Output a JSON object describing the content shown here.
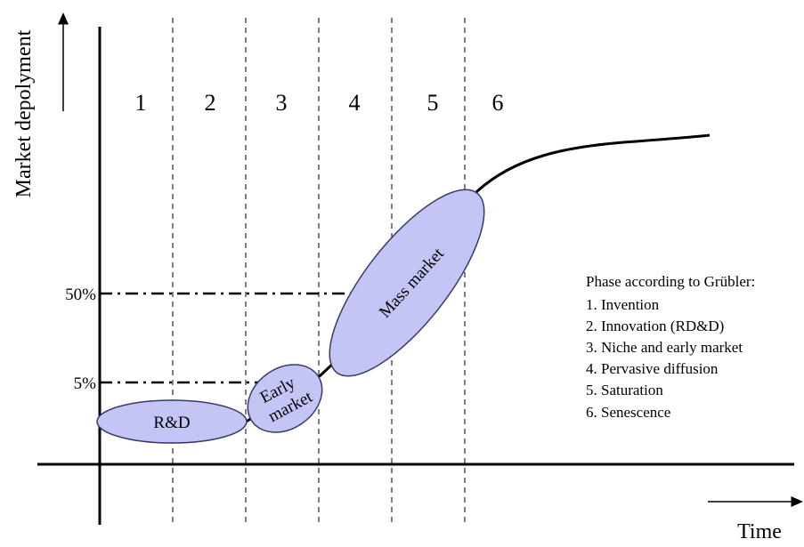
{
  "axes": {
    "y_label": "Market depolyment",
    "x_label": "Time",
    "y_ticks": [
      "50%",
      "5%"
    ]
  },
  "phases": [
    "1",
    "2",
    "3",
    "4",
    "5",
    "6"
  ],
  "stages": {
    "rd": "R&D",
    "early_line1": "Early",
    "early_line2": "market",
    "mass": "Mass market"
  },
  "legend": {
    "title": "Phase according to Grübler:",
    "items": [
      "1. Invention",
      "2. Innovation (RD&D)",
      "3. Niche and early market",
      "4. Pervasive diffusion",
      "5. Saturation",
      "6. Senescence"
    ]
  },
  "colors": {
    "ellipse_fill": "#c3c5f5",
    "ellipse_stroke": "#3a3a6a",
    "line": "#000000"
  }
}
